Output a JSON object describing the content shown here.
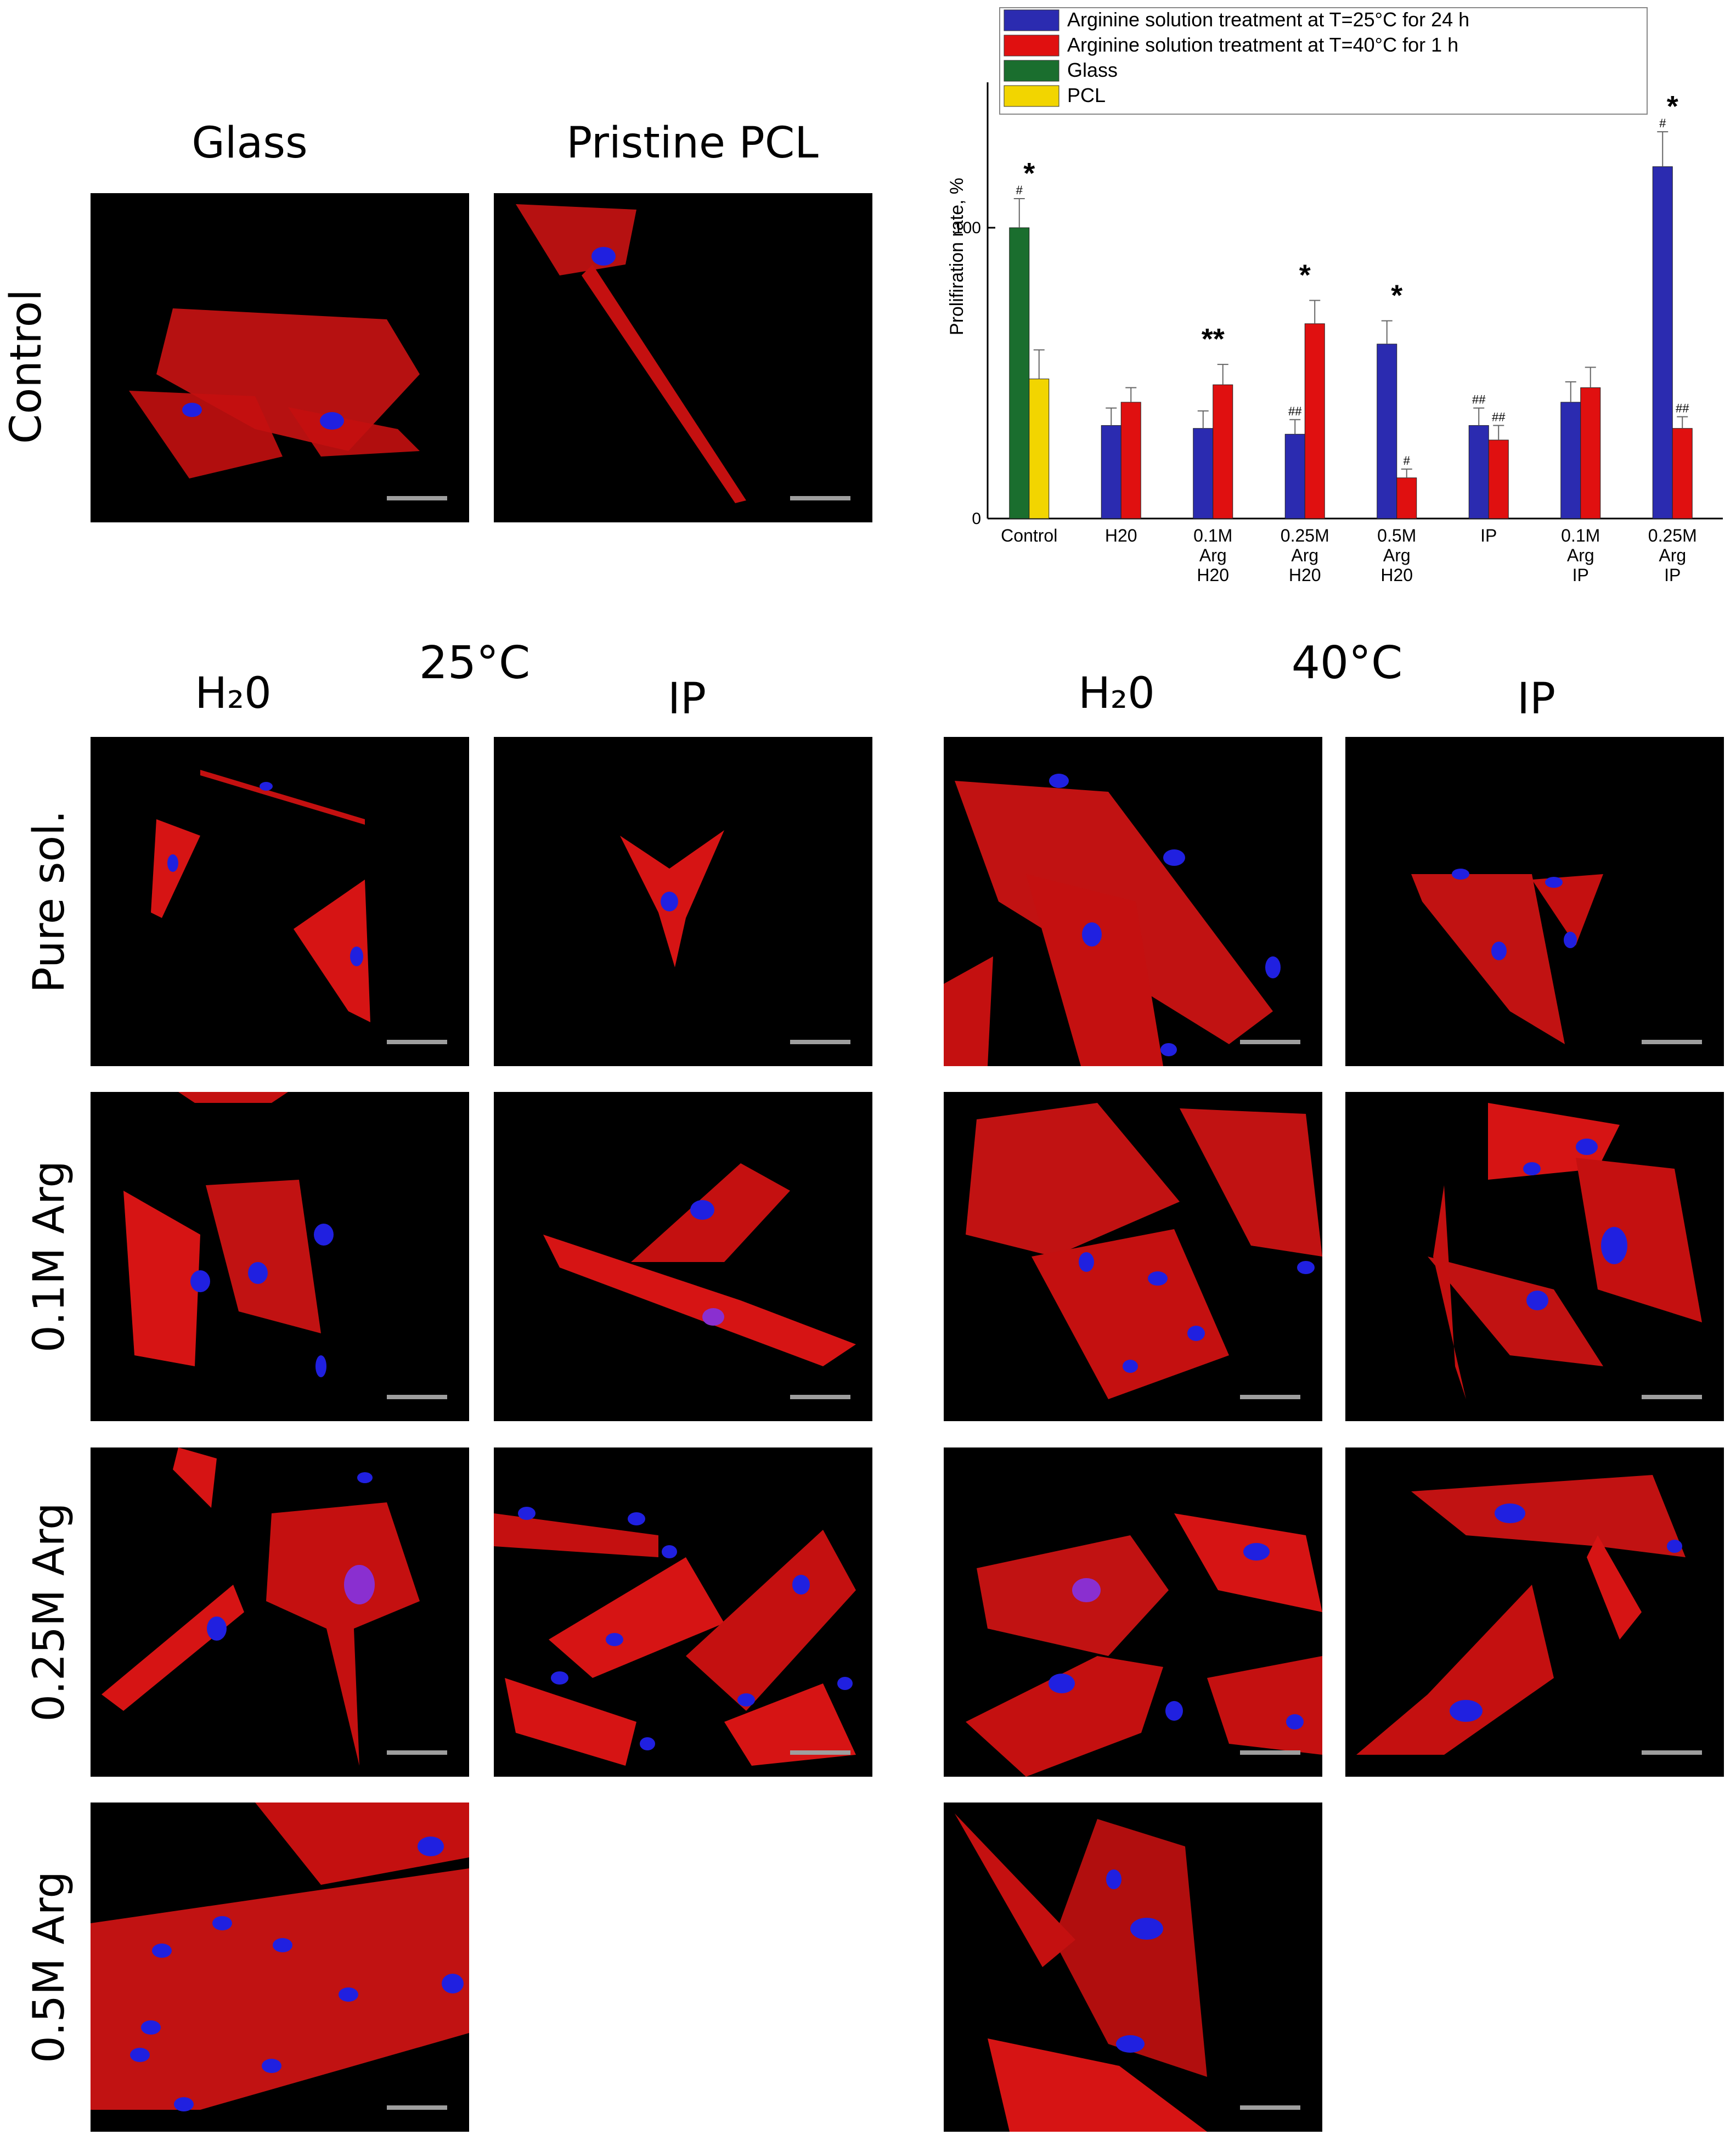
{
  "figure": {
    "column_labels": {
      "glass": "Glass",
      "pristine_pcl": "Pristine PCL",
      "h2o_25": "H₂0",
      "ip_25": "IP",
      "h2o_40": "H₂0",
      "ip_40": "IP"
    },
    "temperature_labels": {
      "t25": "25°C",
      "t40": "40°C"
    },
    "row_labels": {
      "control": "Control",
      "pure": "Pure sol.",
      "arg01": "0.1M Arg",
      "arg025": "0.25M Arg",
      "arg05": "0.5M Arg"
    }
  },
  "chart_data": {
    "type": "bar",
    "title": "",
    "xlabel": "",
    "ylabel": "Prolifiration rate, %",
    "ylim": [
      0,
      150
    ],
    "yticks": [
      0,
      100
    ],
    "grid": false,
    "legend_position": "top",
    "categories": [
      [
        "Control"
      ],
      [
        "H20"
      ],
      [
        "0.1M",
        "Arg",
        "H20"
      ],
      [
        "0.25M",
        "Arg",
        "H20"
      ],
      [
        "0.5M",
        "Arg",
        "H20"
      ],
      [
        "IP"
      ],
      [
        "0.1M",
        "Arg",
        "IP"
      ],
      [
        "0.25M",
        "Arg",
        "IP"
      ]
    ],
    "series": [
      {
        "name": "Arginine solution treatment at T=25°C for 24 h",
        "color": "#2b2bb0",
        "values": [
          null,
          32,
          31,
          29,
          60,
          32,
          40,
          121
        ],
        "errors": [
          null,
          6,
          6,
          5,
          8,
          6,
          7,
          12
        ],
        "marks": [
          null,
          "",
          "",
          "##",
          "",
          "##",
          "",
          "#"
        ]
      },
      {
        "name": "Arginine solution treatment at T=40°C for 1 h",
        "color": "#e01010",
        "values": [
          null,
          40,
          46,
          67,
          14,
          27,
          45,
          31
        ],
        "errors": [
          null,
          5,
          7,
          8,
          3,
          5,
          7,
          4
        ],
        "marks": [
          null,
          "",
          "",
          "",
          "#",
          "##",
          "",
          "##"
        ]
      },
      {
        "name": "Glass",
        "color": "#1a6e2e",
        "values": [
          100,
          null,
          null,
          null,
          null,
          null,
          null,
          null
        ],
        "errors": [
          10,
          null,
          null,
          null,
          null,
          null,
          null,
          null
        ],
        "marks": [
          "#",
          "",
          "",
          "",
          "",
          "",
          "",
          ""
        ]
      },
      {
        "name": "PCL",
        "color": "#f2d500",
        "values": [
          48,
          null,
          null,
          null,
          null,
          null,
          null,
          null
        ],
        "errors": [
          10,
          null,
          null,
          null,
          null,
          null,
          null,
          null
        ],
        "marks": [
          "",
          "",
          "",
          "",
          "",
          "",
          "",
          ""
        ]
      }
    ],
    "significance": [
      "*",
      "",
      "**",
      "*",
      "*",
      "",
      "",
      "*"
    ]
  }
}
